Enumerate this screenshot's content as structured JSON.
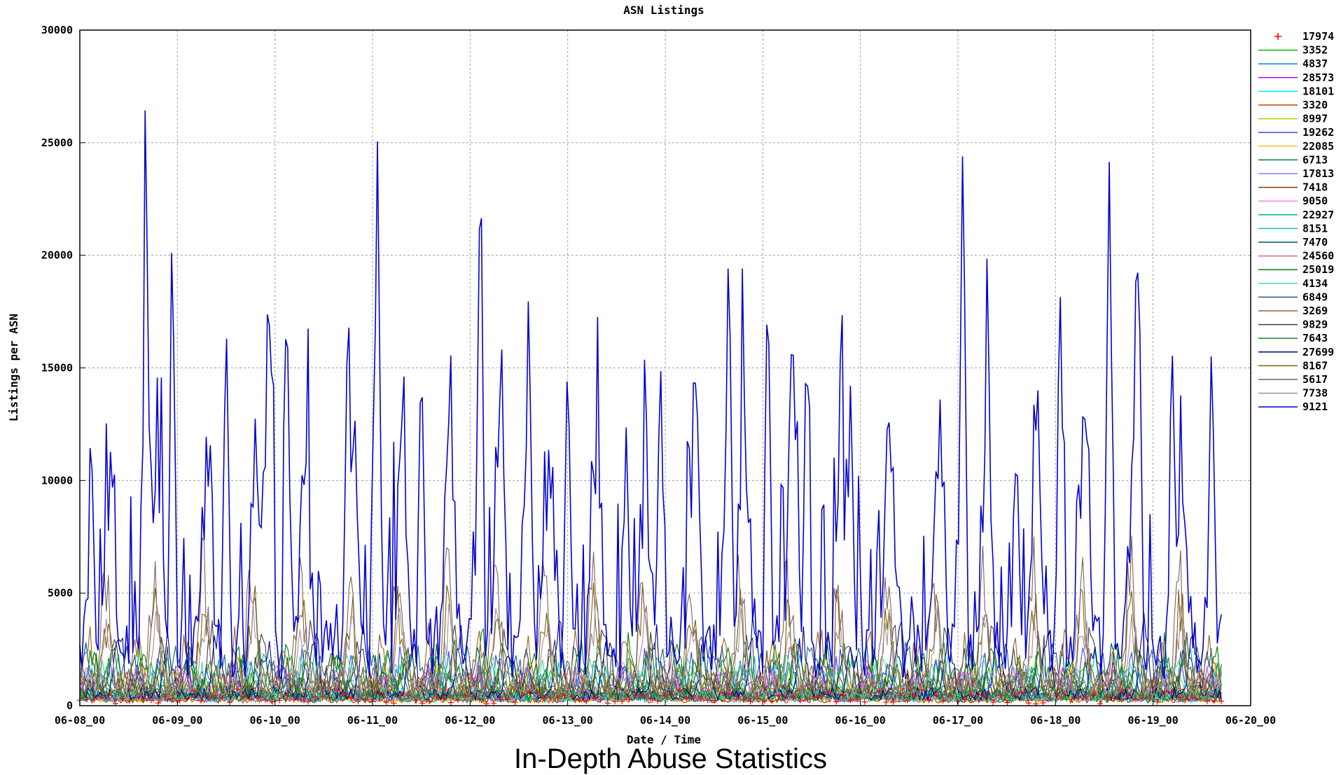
{
  "caption": "In-Depth Abuse Statistics",
  "chart_data": {
    "type": "line",
    "title": "ASN Listings",
    "xlabel": "Date / Time",
    "ylabel": "Listings per ASN",
    "ylim": [
      0,
      30000
    ],
    "yticks": [
      0,
      5000,
      10000,
      15000,
      20000,
      25000,
      30000
    ],
    "xlim_days": [
      0,
      12
    ],
    "xticks": [
      "06-08_00",
      "06-09_00",
      "06-10_00",
      "06-11_00",
      "06-12_00",
      "06-13_00",
      "06-14_00",
      "06-15_00",
      "06-16_00",
      "06-17_00",
      "06-18_00",
      "06-19_00",
      "06-20_00"
    ],
    "grid": true,
    "legend_placement": "right",
    "series": [
      {
        "name": "17974",
        "color": "#ff0000",
        "style": "points",
        "peaks": [],
        "base": 400,
        "amp": 400
      },
      {
        "name": "3352",
        "color": "#00c000",
        "style": "line",
        "base": 600,
        "amp": 1800
      },
      {
        "name": "4837",
        "color": "#0080ff",
        "style": "line",
        "base": 500,
        "amp": 1600
      },
      {
        "name": "28573",
        "color": "#c000ff",
        "style": "line",
        "base": 600,
        "amp": 1500
      },
      {
        "name": "18101",
        "color": "#00eeee",
        "style": "line",
        "base": 500,
        "amp": 1700
      },
      {
        "name": "3320",
        "color": "#c04000",
        "style": "line",
        "base": 400,
        "amp": 1400
      },
      {
        "name": "8997",
        "color": "#c8c800",
        "style": "line",
        "base": 500,
        "amp": 1500
      },
      {
        "name": "19262",
        "color": "#4040ff",
        "style": "line",
        "base": 700,
        "amp": 2000
      },
      {
        "name": "22085",
        "color": "#ffc020",
        "style": "line",
        "base": 500,
        "amp": 1800
      },
      {
        "name": "6713",
        "color": "#008040",
        "style": "line",
        "base": 600,
        "amp": 2200
      },
      {
        "name": "17813",
        "color": "#8080ff",
        "style": "line",
        "base": 500,
        "amp": 1500
      },
      {
        "name": "7418",
        "color": "#804000",
        "style": "line",
        "base": 400,
        "amp": 1200
      },
      {
        "name": "9050",
        "color": "#ff80ff",
        "style": "line",
        "base": 800,
        "amp": 1600
      },
      {
        "name": "22927",
        "color": "#00c060",
        "style": "line",
        "base": 600,
        "amp": 1600
      },
      {
        "name": "8151",
        "color": "#00c0c0",
        "style": "line",
        "base": 800,
        "amp": 2000
      },
      {
        "name": "7470",
        "color": "#005080",
        "style": "line",
        "base": 700,
        "amp": 2400
      },
      {
        "name": "24560",
        "color": "#e06080",
        "style": "line",
        "base": 600,
        "amp": 1500
      },
      {
        "name": "25019",
        "color": "#008000",
        "style": "line",
        "base": 900,
        "amp": 2600
      },
      {
        "name": "4134",
        "color": "#40e0a0",
        "style": "line",
        "base": 700,
        "amp": 1800
      },
      {
        "name": "6849",
        "color": "#206080",
        "style": "line",
        "base": 700,
        "amp": 2500
      },
      {
        "name": "3269",
        "color": "#a06020",
        "style": "line",
        "base": 1000,
        "amp": 3000
      },
      {
        "name": "9829",
        "color": "#404040",
        "style": "line",
        "base": 1200,
        "amp": 3000
      },
      {
        "name": "7643",
        "color": "#208020",
        "style": "line",
        "base": 800,
        "amp": 2500
      },
      {
        "name": "27699",
        "color": "#000080",
        "style": "line",
        "base": 800,
        "amp": 3500
      },
      {
        "name": "8167",
        "color": "#806000",
        "style": "line",
        "base": 1200,
        "amp": 5000
      },
      {
        "name": "5617",
        "color": "#806060",
        "style": "line",
        "base": 1800,
        "amp": 6500
      },
      {
        "name": "7738",
        "color": "#a090a0",
        "style": "line",
        "base": 1200,
        "amp": 4000
      },
      {
        "name": "9121",
        "color": "#0000d0",
        "style": "line",
        "base": 4000,
        "amp": 14000,
        "peaks": [
          {
            "day": 0.12,
            "value": 11400
          },
          {
            "day": 0.68,
            "value": 24000
          },
          {
            "day": 0.95,
            "value": 19800
          },
          {
            "day": 1.5,
            "value": 17500
          },
          {
            "day": 1.95,
            "value": 19000
          },
          {
            "day": 2.12,
            "value": 19300
          },
          {
            "day": 2.75,
            "value": 19200
          },
          {
            "day": 3.05,
            "value": 25200
          },
          {
            "day": 3.5,
            "value": 16300
          },
          {
            "day": 4.1,
            "value": 23000
          },
          {
            "day": 4.6,
            "value": 18700
          },
          {
            "day": 5.0,
            "value": 16100
          },
          {
            "day": 5.6,
            "value": 12500
          },
          {
            "day": 5.95,
            "value": 16000
          },
          {
            "day": 6.3,
            "value": 14300
          },
          {
            "day": 6.65,
            "value": 21500
          },
          {
            "day": 7.05,
            "value": 19800
          },
          {
            "day": 7.45,
            "value": 16500
          },
          {
            "day": 7.9,
            "value": 14800
          },
          {
            "day": 8.3,
            "value": 13800
          },
          {
            "day": 9.05,
            "value": 25800
          },
          {
            "day": 9.6,
            "value": 12300
          },
          {
            "day": 10.05,
            "value": 18300
          },
          {
            "day": 10.55,
            "value": 24500
          },
          {
            "day": 10.85,
            "value": 21500
          },
          {
            "day": 11.2,
            "value": 15900
          },
          {
            "day": 11.6,
            "value": 16700
          }
        ]
      }
    ]
  }
}
